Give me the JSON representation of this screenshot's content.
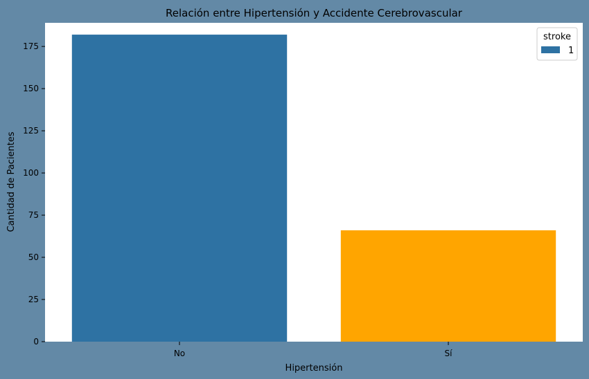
{
  "chart_data": {
    "type": "bar",
    "title": "Relación entre Hipertensión y Accidente Cerebrovascular",
    "xlabel": "Hipertensión",
    "ylabel": "Cantidad de Pacientes",
    "categories": [
      "No",
      "Sí"
    ],
    "values": [
      182,
      66
    ],
    "bar_colors": [
      "#2e72a3",
      "#ffa500"
    ],
    "ylim": [
      0,
      189
    ],
    "yticks": [
      0,
      25,
      50,
      75,
      100,
      125,
      150,
      175
    ],
    "grid": false,
    "legend": {
      "title": "stroke",
      "placement": "top-right",
      "entries": [
        {
          "label": "1",
          "color": "#2e72a3"
        }
      ]
    }
  },
  "colors": {
    "figure_background": "#6389a6",
    "plot_background": "#ffffff"
  }
}
